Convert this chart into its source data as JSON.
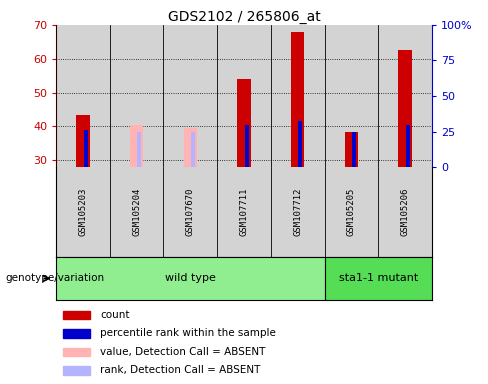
{
  "title": "GDS2102 / 265806_at",
  "samples": [
    "GSM105203",
    "GSM105204",
    "GSM107670",
    "GSM107711",
    "GSM107712",
    "GSM105205",
    "GSM105206"
  ],
  "wild_type_indices": [
    0,
    1,
    2,
    3,
    4
  ],
  "mutant_indices": [
    5,
    6
  ],
  "wild_type_label": "wild type",
  "mutant_label": "sta1-1 mutant",
  "count_values": [
    43.5,
    null,
    null,
    54.0,
    68.0,
    38.5,
    62.5
  ],
  "rank_values": [
    39.0,
    null,
    null,
    40.5,
    41.5,
    38.5,
    40.5
  ],
  "absent_value_values": [
    null,
    40.5,
    39.5,
    null,
    null,
    null,
    null
  ],
  "absent_rank_values": [
    null,
    38.5,
    38.5,
    null,
    null,
    null,
    null
  ],
  "ylim": [
    28,
    70
  ],
  "yticks": [
    30,
    40,
    50,
    60,
    70
  ],
  "y2lim": [
    0,
    100
  ],
  "y2ticks": [
    0,
    25,
    50,
    75,
    100
  ],
  "y2ticklabels": [
    "0",
    "25",
    "50",
    "75",
    "100%"
  ],
  "color_count": "#cc0000",
  "color_rank": "#0000cc",
  "color_absent_value": "#ffb3b3",
  "color_absent_rank": "#b3b3ff",
  "color_sample_bg": "#d3d3d3",
  "color_wt_bg": "#90ee90",
  "color_mut_bg": "#55dd55",
  "color_plot_bg": "#ffffff",
  "geno_label": "genotype/variation",
  "legend_items": [
    {
      "color": "#cc0000",
      "label": "count"
    },
    {
      "color": "#0000cc",
      "label": "percentile rank within the sample"
    },
    {
      "color": "#ffb3b3",
      "label": "value, Detection Call = ABSENT"
    },
    {
      "color": "#b3b3ff",
      "label": "rank, Detection Call = ABSENT"
    }
  ]
}
